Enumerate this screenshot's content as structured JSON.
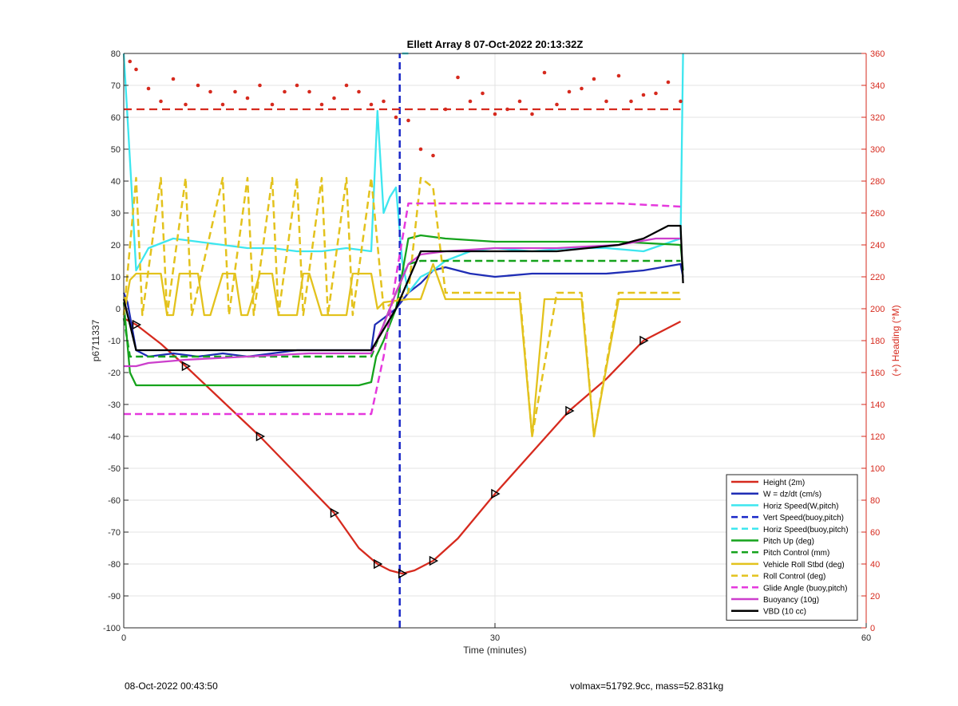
{
  "footer": {
    "left": "08-Oct-2022 00:43:50",
    "right": "volmax=51792.9cc, mass=52.831kg"
  },
  "chart_data": {
    "type": "line",
    "title": "Ellett Array 8 07-Oct-2022 20:13:32Z",
    "xlabel": "Time (minutes)",
    "ylabel": "p6711337",
    "y2label": "(+) Heading (°M)",
    "xlim": [
      0,
      60
    ],
    "ylim": [
      -100,
      80
    ],
    "y2lim": [
      0,
      360
    ],
    "xticks": [
      0,
      30,
      60
    ],
    "yticks": [
      -100,
      -90,
      -80,
      -70,
      -60,
      -50,
      -40,
      -30,
      -20,
      -10,
      0,
      10,
      20,
      30,
      40,
      50,
      60,
      70,
      80
    ],
    "y2ticks": [
      0,
      20,
      40,
      60,
      80,
      100,
      120,
      140,
      160,
      180,
      200,
      220,
      240,
      260,
      280,
      300,
      320,
      340,
      360
    ],
    "grid": true,
    "legend_position": "bottom-right",
    "colors": {
      "height": "#d62a1e",
      "w": "#1f2db5",
      "horiz": "#3de6ef",
      "vert_dashed": "#1a28c8",
      "pitch": "#15a31c",
      "roll": "#e3c21d",
      "glide": "#e539dd",
      "buoyancy": "#cc3fcc",
      "vbd": "#000000",
      "heading": "#d62a1e"
    },
    "series": [
      {
        "name": "Height (2m)",
        "style": "solid",
        "color": "#d62a1e",
        "x": [
          0,
          1,
          3,
          5,
          8,
          11,
          14,
          17,
          19,
          20.5,
          21.5,
          22.5,
          23.5,
          25,
          27,
          30,
          33,
          36,
          39,
          42,
          45
        ],
        "y": [
          -3,
          -5,
          -11,
          -18,
          -29,
          -40,
          -52,
          -64,
          -75,
          -80,
          -82,
          -83,
          -82,
          -79,
          -72,
          -58,
          -45,
          -32,
          -22,
          -10,
          -4
        ]
      },
      {
        "name": "W = dz/dt (cm/s)",
        "style": "solid",
        "color": "#1f2db5",
        "x": [
          0,
          0.3,
          1,
          2,
          4,
          6,
          8,
          10,
          12,
          14,
          16,
          18,
          20,
          20.3,
          21,
          22,
          23,
          24,
          25,
          26,
          28,
          30,
          33,
          36,
          39,
          42,
          45,
          45.2
        ],
        "y": [
          5,
          2,
          -13,
          -15,
          -14,
          -15,
          -14,
          -15,
          -14,
          -13,
          -13,
          -13,
          -13,
          -5,
          -3,
          0,
          5,
          8,
          12,
          13,
          11,
          10,
          11,
          11,
          11,
          12,
          14,
          10
        ]
      },
      {
        "name": "Horiz Speed(W,pitch)",
        "style": "solid",
        "color": "#3de6ef",
        "x": [
          0,
          0.3,
          0.6,
          1,
          2,
          4,
          6,
          8,
          10,
          12,
          14,
          16,
          18,
          20,
          20.5,
          21,
          21.5,
          22,
          22.5,
          23,
          24,
          25,
          26,
          28,
          30,
          33,
          36,
          39,
          42,
          45,
          45.2
        ],
        "y": [
          80,
          60,
          40,
          12,
          19,
          22,
          21,
          20,
          19,
          19,
          18,
          18,
          19,
          18,
          62,
          30,
          35,
          38,
          15,
          5,
          10,
          12,
          15,
          18,
          19,
          18,
          19,
          19,
          18,
          22,
          80
        ]
      },
      {
        "name": "Vert Speed(buoy,pitch)",
        "style": "dashed",
        "color": "#1a28c8",
        "x": [
          22.3,
          22.3
        ],
        "y": [
          -100,
          80
        ]
      },
      {
        "name": "Horiz Speed(buoy,pitch)",
        "style": "dashed",
        "color": "#3de6ef",
        "x": [
          22.5,
          23
        ],
        "y": [
          80,
          80
        ]
      },
      {
        "name": "Pitch Up (deg)",
        "style": "solid",
        "color": "#15a31c",
        "x": [
          0,
          0.5,
          1,
          2,
          5,
          10,
          15,
          19,
          20,
          20.4,
          21,
          22,
          23,
          24,
          26,
          30,
          35,
          40,
          45,
          45.2
        ],
        "y": [
          2,
          -20,
          -24,
          -24,
          -24,
          -24,
          -24,
          -24,
          -23,
          -15,
          -10,
          0,
          22,
          23,
          22,
          21,
          21,
          21,
          20,
          12
        ]
      },
      {
        "name": "Pitch Control (mm)",
        "style": "dashed",
        "color": "#15a31c",
        "x": [
          0,
          0.5,
          1,
          5,
          10,
          15,
          20,
          20.5,
          21,
          22,
          23,
          24,
          26,
          30,
          35,
          40,
          45
        ],
        "y": [
          -3,
          -15,
          -15,
          -15,
          -15,
          -15,
          -15,
          -10,
          -5,
          5,
          14,
          15,
          15,
          15,
          15,
          15,
          15
        ]
      },
      {
        "name": "Vehicle Roll Stbd (deg)",
        "style": "solid",
        "color": "#e3c21d",
        "x": [
          0,
          0.5,
          1,
          1.5,
          3,
          3.5,
          4,
          4.5,
          6,
          6.5,
          7,
          8,
          9,
          9.5,
          10,
          11,
          12,
          12.5,
          14,
          14.5,
          15,
          16,
          18,
          18.5,
          20,
          20.5,
          21,
          23,
          24,
          25,
          26,
          27,
          28,
          32,
          33,
          34,
          35,
          36,
          37,
          38,
          40,
          41,
          45
        ],
        "y": [
          -2,
          9,
          11,
          11,
          11,
          -2,
          -2,
          11,
          11,
          -2,
          -2,
          11,
          11,
          -2,
          -2,
          11,
          11,
          -2,
          -2,
          11,
          11,
          -2,
          -2,
          11,
          11,
          0,
          2,
          3,
          3,
          14,
          3,
          3,
          3,
          3,
          -40,
          3,
          3,
          3,
          3,
          -40,
          3,
          3,
          3
        ]
      },
      {
        "name": "Roll Control (deg)",
        "style": "dashed",
        "color": "#e3c21d",
        "x": [
          0,
          1,
          1.5,
          3,
          3.5,
          5,
          5.5,
          8,
          8.5,
          10,
          10.5,
          12,
          12.5,
          14,
          14.5,
          16,
          16.5,
          18,
          18.5,
          20,
          21,
          23,
          24,
          25,
          26,
          28,
          30,
          32,
          33,
          35,
          37,
          38,
          40,
          45
        ],
        "y": [
          -2,
          41,
          -2,
          41,
          -2,
          41,
          -2,
          41,
          -2,
          41,
          -2,
          41,
          -2,
          41,
          -2,
          41,
          -2,
          41,
          -2,
          41,
          0,
          5,
          41,
          38,
          5,
          5,
          5,
          5,
          -40,
          5,
          5,
          -40,
          5,
          5
        ]
      },
      {
        "name": "Glide Angle (buoy,pitch)",
        "style": "dashed",
        "color": "#e539dd",
        "x": [
          0,
          1,
          5,
          10,
          15,
          20,
          21,
          22,
          23,
          24,
          25,
          30,
          35,
          40,
          45
        ],
        "y": [
          -33,
          -33,
          -33,
          -33,
          -33,
          -33,
          -15,
          10,
          33,
          33,
          33,
          33,
          33,
          33,
          32
        ]
      },
      {
        "name": "Buoyancy (10g)",
        "style": "solid",
        "color": "#cc3fcc",
        "x": [
          0,
          1,
          2,
          5,
          10,
          15,
          20,
          21,
          22,
          23,
          24,
          26,
          30,
          35,
          40,
          43,
          45
        ],
        "y": [
          -18,
          -18,
          -17,
          -16,
          -15,
          -14,
          -14,
          -5,
          5,
          14,
          17,
          18,
          19,
          19,
          20,
          22,
          22
        ]
      },
      {
        "name": "VBD (10 cc)",
        "style": "solid",
        "color": "#000000",
        "x": [
          0,
          0.5,
          1,
          3,
          10,
          19,
          20,
          22,
          24,
          25,
          27,
          30,
          35,
          40,
          42,
          44,
          45,
          45.2
        ],
        "y": [
          3,
          -5,
          -13,
          -13,
          -13,
          -13,
          -13,
          0,
          18,
          18,
          18,
          18,
          18,
          20,
          22,
          26,
          26,
          8
        ]
      }
    ],
    "heading": {
      "name": "(+) Heading (°M)",
      "axis": "right",
      "mean": 325,
      "x": [
        0.5,
        1,
        2,
        3,
        4,
        5,
        6,
        7,
        8,
        9,
        10,
        11,
        12,
        13,
        14,
        15,
        16,
        17,
        18,
        19,
        20,
        21,
        22,
        23,
        24,
        25,
        26,
        27,
        28,
        29,
        30,
        31,
        32,
        33,
        34,
        35,
        36,
        37,
        38,
        39,
        40,
        41,
        42,
        43,
        44,
        45
      ],
      "y": [
        355,
        350,
        338,
        330,
        344,
        328,
        340,
        336,
        328,
        336,
        332,
        340,
        328,
        336,
        340,
        336,
        328,
        332,
        340,
        336,
        328,
        330,
        320,
        318,
        300,
        296,
        325,
        345,
        330,
        335,
        322,
        325,
        330,
        322,
        348,
        328,
        336,
        338,
        344,
        330,
        346,
        330,
        334,
        335,
        342,
        330
      ]
    },
    "legend": [
      "Height (2m)",
      "W = dz/dt (cm/s)",
      "Horiz Speed(W,pitch)",
      "Vert Speed(buoy,pitch)",
      "Horiz Speed(buoy,pitch)",
      "Pitch Up (deg)",
      "Pitch Control (mm)",
      "Vehicle Roll Stbd (deg)",
      "Roll Control (deg)",
      "Glide Angle (buoy,pitch)",
      "Buoyancy (10g)",
      "VBD (10 cc)"
    ]
  }
}
